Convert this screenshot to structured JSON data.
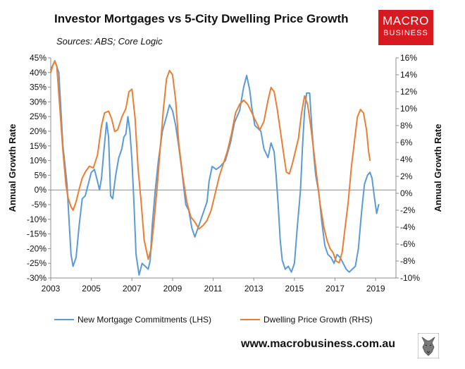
{
  "header": {
    "title": "Investor Mortgages vs 5-City Dwelling Price Growth",
    "subtitle": "Sources: ABS; Core Logic",
    "logo_line1": "MACRO",
    "logo_line2": "BUSINESS",
    "website": "www.macrobusiness.com.au"
  },
  "colors": {
    "lhs": "#5b9bd5",
    "rhs": "#ed7d31",
    "logo_bg": "#d71920"
  },
  "icons": {
    "mascot": "wolf-icon"
  },
  "chart_data": {
    "type": "line",
    "title": "Investor Mortgages vs 5-City Dwelling Price Growth",
    "ylabel": "Annual Growth Rate",
    "y2label": "Annual Growth Rate",
    "xlim": [
      2003,
      2020
    ],
    "ylim": [
      -30,
      45
    ],
    "y2lim": [
      -10,
      16
    ],
    "x_ticks": [
      2003,
      2005,
      2007,
      2009,
      2011,
      2013,
      2015,
      2017,
      2019
    ],
    "x_tick_labels": [
      "2003",
      "2005",
      "2007",
      "2009",
      "2011",
      "2013",
      "2015",
      "2017",
      "2019"
    ],
    "y_ticks": [
      45,
      40,
      35,
      30,
      25,
      20,
      15,
      10,
      5,
      0,
      -5,
      -10,
      -15,
      -20,
      -25,
      -30
    ],
    "y_tick_labels": [
      "45%",
      "40%",
      "35%",
      "30%",
      "25%",
      "20%",
      "15%",
      "10%",
      "5%",
      "0%",
      "-5%",
      "-10%",
      "-15%",
      "-20%",
      "-25%",
      "-30%"
    ],
    "y2_ticks": [
      16,
      14,
      12,
      10,
      8,
      6,
      4,
      2,
      0,
      -2,
      -4,
      -6,
      -8,
      -10
    ],
    "y2_tick_labels": [
      "16%",
      "14%",
      "12%",
      "10%",
      "8%",
      "6%",
      "4%",
      "2%",
      "0%",
      "-2%",
      "-4%",
      "-6%",
      "-8%",
      "-10%"
    ],
    "legend_position": "bottom",
    "series": [
      {
        "name": "New Mortgage Commitments (LHS)",
        "axis": "left",
        "color": "#5b9bd5",
        "points": [
          [
            2003.0,
            41
          ],
          [
            2003.2,
            44
          ],
          [
            2003.4,
            40
          ],
          [
            2003.6,
            15
          ],
          [
            2003.8,
            2
          ],
          [
            2003.9,
            -10
          ],
          [
            2004.0,
            -22
          ],
          [
            2004.1,
            -26
          ],
          [
            2004.25,
            -23
          ],
          [
            2004.4,
            -12
          ],
          [
            2004.55,
            -3
          ],
          [
            2004.7,
            -2
          ],
          [
            2004.85,
            2
          ],
          [
            2005.0,
            6
          ],
          [
            2005.15,
            7
          ],
          [
            2005.3,
            3
          ],
          [
            2005.4,
            0
          ],
          [
            2005.5,
            4
          ],
          [
            2005.6,
            12
          ],
          [
            2005.75,
            23
          ],
          [
            2005.85,
            18
          ],
          [
            2005.95,
            -2
          ],
          [
            2006.05,
            -3
          ],
          [
            2006.2,
            5
          ],
          [
            2006.35,
            11
          ],
          [
            2006.5,
            14
          ],
          [
            2006.6,
            18
          ],
          [
            2006.7,
            19
          ],
          [
            2006.8,
            25
          ],
          [
            2006.9,
            20
          ],
          [
            2007.0,
            10
          ],
          [
            2007.1,
            -5
          ],
          [
            2007.2,
            -22
          ],
          [
            2007.35,
            -29
          ],
          [
            2007.5,
            -25
          ],
          [
            2007.65,
            -26
          ],
          [
            2007.8,
            -27
          ],
          [
            2007.9,
            -24
          ],
          [
            2008.0,
            -12
          ],
          [
            2008.15,
            0
          ],
          [
            2008.3,
            10
          ],
          [
            2008.5,
            20
          ],
          [
            2008.7,
            25
          ],
          [
            2008.85,
            29
          ],
          [
            2009.0,
            27
          ],
          [
            2009.15,
            22
          ],
          [
            2009.3,
            15
          ],
          [
            2009.45,
            7
          ],
          [
            2009.55,
            1
          ],
          [
            2009.65,
            -5
          ],
          [
            2009.8,
            -7
          ],
          [
            2009.95,
            -13
          ],
          [
            2010.1,
            -16
          ],
          [
            2010.25,
            -13
          ],
          [
            2010.4,
            -10
          ],
          [
            2010.55,
            -7
          ],
          [
            2010.7,
            -4
          ],
          [
            2010.8,
            3
          ],
          [
            2010.95,
            8
          ],
          [
            2011.15,
            7
          ],
          [
            2011.35,
            8
          ],
          [
            2011.6,
            10
          ],
          [
            2011.85,
            16
          ],
          [
            2012.05,
            23
          ],
          [
            2012.3,
            27
          ],
          [
            2012.5,
            35
          ],
          [
            2012.65,
            39
          ],
          [
            2012.8,
            34
          ],
          [
            2012.9,
            28
          ],
          [
            2013.05,
            22
          ],
          [
            2013.2,
            21
          ],
          [
            2013.35,
            20
          ],
          [
            2013.5,
            14
          ],
          [
            2013.7,
            11
          ],
          [
            2013.85,
            16
          ],
          [
            2014.0,
            13
          ],
          [
            2014.1,
            5
          ],
          [
            2014.2,
            -5
          ],
          [
            2014.3,
            -17
          ],
          [
            2014.4,
            -24
          ],
          [
            2014.55,
            -27
          ],
          [
            2014.7,
            -26
          ],
          [
            2014.85,
            -28
          ],
          [
            2015.0,
            -25
          ],
          [
            2015.15,
            -12
          ],
          [
            2015.3,
            0
          ],
          [
            2015.4,
            15
          ],
          [
            2015.5,
            27
          ],
          [
            2015.6,
            33
          ],
          [
            2015.75,
            33
          ],
          [
            2015.85,
            22
          ],
          [
            2015.95,
            12
          ],
          [
            2016.05,
            5
          ],
          [
            2016.2,
            -1
          ],
          [
            2016.35,
            -11
          ],
          [
            2016.5,
            -19
          ],
          [
            2016.65,
            -22
          ],
          [
            2016.8,
            -23
          ],
          [
            2016.95,
            -25
          ],
          [
            2017.1,
            -22
          ],
          [
            2017.25,
            -23
          ],
          [
            2017.4,
            -25
          ],
          [
            2017.55,
            -27
          ],
          [
            2017.7,
            -28
          ],
          [
            2017.85,
            -27
          ],
          [
            2018.0,
            -26
          ],
          [
            2018.15,
            -20
          ],
          [
            2018.3,
            -8
          ],
          [
            2018.45,
            2
          ],
          [
            2018.6,
            5
          ],
          [
            2018.72,
            6
          ],
          [
            2018.82,
            4
          ],
          [
            2018.95,
            -3
          ],
          [
            2019.05,
            -8
          ],
          [
            2019.15,
            -5
          ]
        ]
      },
      {
        "name": "Dwelling Price Growth (RHS)",
        "axis": "right",
        "color": "#ed7d31",
        "points": [
          [
            2003.0,
            14.3
          ],
          [
            2003.1,
            15.1
          ],
          [
            2003.2,
            15.6
          ],
          [
            2003.3,
            15.0
          ],
          [
            2003.45,
            10.0
          ],
          [
            2003.6,
            5.0
          ],
          [
            2003.75,
            1.0
          ],
          [
            2003.85,
            -0.5
          ],
          [
            2004.0,
            -1.6
          ],
          [
            2004.1,
            -2.0
          ],
          [
            2004.25,
            -1.0
          ],
          [
            2004.4,
            0.5
          ],
          [
            2004.55,
            1.8
          ],
          [
            2004.7,
            2.5
          ],
          [
            2004.9,
            3.2
          ],
          [
            2005.1,
            3.0
          ],
          [
            2005.3,
            4.5
          ],
          [
            2005.5,
            8.0
          ],
          [
            2005.65,
            9.5
          ],
          [
            2005.85,
            9.7
          ],
          [
            2006.0,
            8.8
          ],
          [
            2006.15,
            7.3
          ],
          [
            2006.3,
            7.5
          ],
          [
            2006.5,
            9.0
          ],
          [
            2006.7,
            10.0
          ],
          [
            2006.85,
            12.0
          ],
          [
            2007.0,
            12.3
          ],
          [
            2007.15,
            9.0
          ],
          [
            2007.3,
            3.0
          ],
          [
            2007.45,
            -1.0
          ],
          [
            2007.6,
            -5.5
          ],
          [
            2007.8,
            -7.8
          ],
          [
            2007.95,
            -6.5
          ],
          [
            2008.1,
            -3.0
          ],
          [
            2008.25,
            1.0
          ],
          [
            2008.4,
            5.5
          ],
          [
            2008.55,
            10.0
          ],
          [
            2008.7,
            13.5
          ],
          [
            2008.85,
            14.5
          ],
          [
            2009.0,
            14.0
          ],
          [
            2009.15,
            11.0
          ],
          [
            2009.3,
            6.0
          ],
          [
            2009.5,
            2.0
          ],
          [
            2009.7,
            -1.0
          ],
          [
            2009.9,
            -2.8
          ],
          [
            2010.1,
            -3.4
          ],
          [
            2010.3,
            -4.2
          ],
          [
            2010.5,
            -3.8
          ],
          [
            2010.7,
            -3.2
          ],
          [
            2010.9,
            -2.0
          ],
          [
            2011.1,
            0.0
          ],
          [
            2011.3,
            2.0
          ],
          [
            2011.5,
            3.5
          ],
          [
            2011.7,
            5.0
          ],
          [
            2011.9,
            7.0
          ],
          [
            2012.1,
            9.5
          ],
          [
            2012.3,
            10.5
          ],
          [
            2012.5,
            11.0
          ],
          [
            2012.7,
            10.5
          ],
          [
            2012.9,
            9.5
          ],
          [
            2013.1,
            8.5
          ],
          [
            2013.3,
            7.5
          ],
          [
            2013.5,
            8.5
          ],
          [
            2013.7,
            11.0
          ],
          [
            2013.85,
            12.5
          ],
          [
            2014.0,
            12.0
          ],
          [
            2014.15,
            10.0
          ],
          [
            2014.3,
            7.5
          ],
          [
            2014.45,
            5.0
          ],
          [
            2014.6,
            2.5
          ],
          [
            2014.75,
            2.3
          ],
          [
            2014.9,
            3.5
          ],
          [
            2015.05,
            5.0
          ],
          [
            2015.2,
            6.5
          ],
          [
            2015.35,
            9.5
          ],
          [
            2015.5,
            11.5
          ],
          [
            2015.65,
            10.5
          ],
          [
            2015.8,
            8.0
          ],
          [
            2015.95,
            5.0
          ],
          [
            2016.1,
            2.0
          ],
          [
            2016.25,
            -1.0
          ],
          [
            2016.45,
            -4.0
          ],
          [
            2016.6,
            -5.5
          ],
          [
            2016.75,
            -6.5
          ],
          [
            2016.9,
            -7.0
          ],
          [
            2017.05,
            -8.0
          ],
          [
            2017.2,
            -8.2
          ],
          [
            2017.35,
            -7.0
          ],
          [
            2017.5,
            -4.0
          ],
          [
            2017.65,
            -1.0
          ],
          [
            2017.8,
            3.0
          ],
          [
            2017.95,
            6.0
          ],
          [
            2018.1,
            9.0
          ],
          [
            2018.25,
            9.9
          ],
          [
            2018.4,
            9.5
          ],
          [
            2018.55,
            7.5
          ],
          [
            2018.65,
            5.0
          ],
          [
            2018.72,
            3.9
          ]
        ]
      }
    ]
  }
}
